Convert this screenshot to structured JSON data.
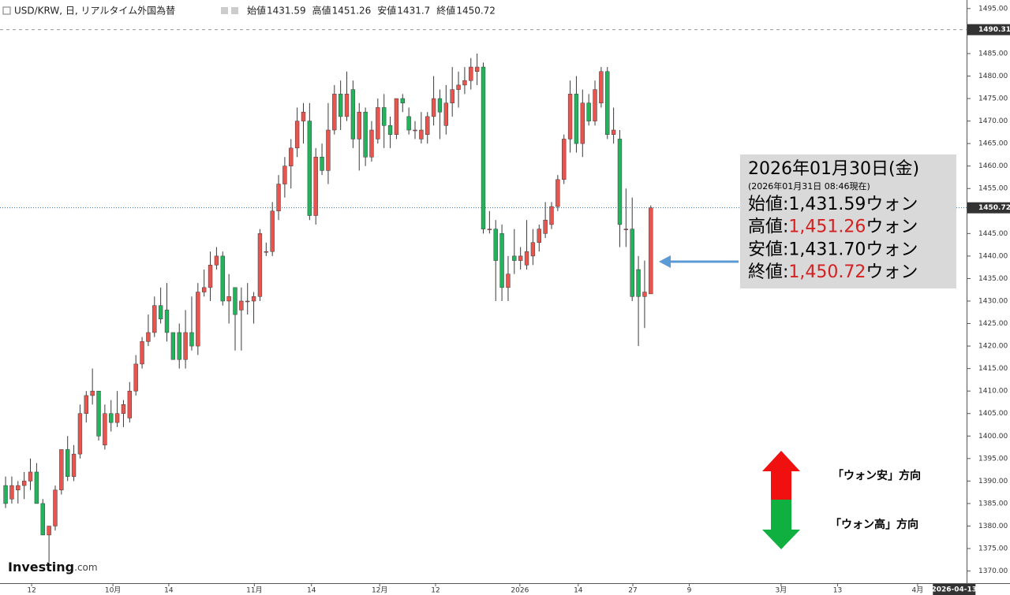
{
  "chart_data": {
    "type": "candlestick",
    "header": {
      "symbol": "USD/KRW, 日, リアルタイム外国為替",
      "ohlc": [
        {
          "label": "始値",
          "value": 1431.59
        },
        {
          "label": "高値",
          "value": 1451.26
        },
        {
          "label": "安値",
          "value": 1431.7
        },
        {
          "label": "終値",
          "value": 1450.72
        }
      ]
    },
    "up_color": "#e8544e",
    "down_color": "#22b35c",
    "wick_color": "#3a3a3a",
    "candles": [
      [
        1389,
        1391,
        1384,
        1385
      ],
      [
        1386,
        1391,
        1385,
        1389
      ],
      [
        1388,
        1390,
        1385,
        1389
      ],
      [
        1389,
        1392,
        1386,
        1390
      ],
      [
        1390,
        1395,
        1388,
        1392
      ],
      [
        1392,
        1394,
        1385,
        1385
      ],
      [
        1385,
        1386,
        1378,
        1378
      ],
      [
        1378,
        1380,
        1372,
        1380
      ],
      [
        1380,
        1389,
        1379,
        1388
      ],
      [
        1388,
        1397,
        1387,
        1397
      ],
      [
        1397,
        1400,
        1390,
        1391
      ],
      [
        1391,
        1398,
        1390,
        1396
      ],
      [
        1396,
        1407,
        1395,
        1405
      ],
      [
        1405,
        1410,
        1403,
        1409
      ],
      [
        1409,
        1415,
        1407,
        1410
      ],
      [
        1410,
        1410,
        1399,
        1400
      ],
      [
        1398,
        1407,
        1397,
        1405
      ],
      [
        1405,
        1408,
        1401,
        1403
      ],
      [
        1403,
        1410,
        1402,
        1405
      ],
      [
        1405,
        1408,
        1402,
        1407
      ],
      [
        1404,
        1412,
        1403,
        1410
      ],
      [
        1410,
        1418,
        1409,
        1416
      ],
      [
        1416,
        1422,
        1415,
        1421
      ],
      [
        1421,
        1427,
        1420,
        1423
      ],
      [
        1423,
        1431,
        1422,
        1429
      ],
      [
        1429,
        1433,
        1425,
        1426
      ],
      [
        1428,
        1434,
        1421,
        1423
      ],
      [
        1423,
        1423,
        1417,
        1417
      ],
      [
        1423,
        1425,
        1415,
        1417
      ],
      [
        1417,
        1428,
        1415,
        1423
      ],
      [
        1423,
        1431,
        1419,
        1420
      ],
      [
        1420,
        1434,
        1418,
        1432
      ],
      [
        1432,
        1437,
        1431,
        1433
      ],
      [
        1433,
        1441,
        1430,
        1438
      ],
      [
        1438,
        1442,
        1437,
        1440
      ],
      [
        1440,
        1441,
        1429,
        1430
      ],
      [
        1430,
        1436,
        1425,
        1431
      ],
      [
        1433,
        1433,
        1419,
        1427
      ],
      [
        1428,
        1433,
        1419,
        1430
      ],
      [
        1430,
        1434,
        1427,
        1430
      ],
      [
        1430,
        1432,
        1425,
        1431
      ],
      [
        1431,
        1446,
        1430,
        1445
      ],
      [
        1441,
        1443,
        1440,
        1441
      ],
      [
        1441,
        1452,
        1440,
        1450
      ],
      [
        1450,
        1458,
        1448,
        1456
      ],
      [
        1456,
        1462,
        1453,
        1460
      ],
      [
        1460,
        1466,
        1455,
        1464
      ],
      [
        1464,
        1473,
        1462,
        1470
      ],
      [
        1470,
        1474,
        1465,
        1472
      ],
      [
        1470,
        1474,
        1448,
        1449
      ],
      [
        1449,
        1464,
        1447,
        1462
      ],
      [
        1462,
        1465,
        1458,
        1459
      ],
      [
        1459,
        1474,
        1456,
        1468
      ],
      [
        1468,
        1478,
        1467,
        1476
      ],
      [
        1476,
        1479,
        1468,
        1471
      ],
      [
        1471,
        1481,
        1470,
        1476
      ],
      [
        1477,
        1479,
        1464,
        1466
      ],
      [
        1466,
        1474,
        1459,
        1472
      ],
      [
        1472,
        1473,
        1460,
        1462
      ],
      [
        1462,
        1470,
        1461,
        1468
      ],
      [
        1466,
        1475,
        1465,
        1473
      ],
      [
        1473,
        1476,
        1464,
        1469
      ],
      [
        1469,
        1471,
        1464,
        1467
      ],
      [
        1467,
        1475,
        1466,
        1475
      ],
      [
        1475,
        1476,
        1472,
        1474
      ],
      [
        1471,
        1473,
        1467,
        1468
      ],
      [
        1468,
        1470,
        1466,
        1468
      ],
      [
        1466,
        1472,
        1465,
        1468
      ],
      [
        1467,
        1472,
        1465,
        1471
      ],
      [
        1471,
        1480,
        1469,
        1475
      ],
      [
        1475,
        1477,
        1466,
        1472
      ],
      [
        1469,
        1478,
        1467,
        1474
      ],
      [
        1474,
        1482,
        1471,
        1477
      ],
      [
        1477,
        1481,
        1473,
        1478
      ],
      [
        1478,
        1482,
        1476,
        1479
      ],
      [
        1479,
        1484,
        1477,
        1482
      ],
      [
        1481,
        1485,
        1478,
        1482
      ],
      [
        1482,
        1483,
        1445,
        1446
      ],
      [
        1446,
        1450,
        1445,
        1446
      ],
      [
        1446,
        1448,
        1430,
        1439
      ],
      [
        1445,
        1447,
        1430,
        1433
      ],
      [
        1433,
        1440,
        1430,
        1436
      ],
      [
        1440,
        1446,
        1436,
        1439
      ],
      [
        1439,
        1442,
        1437,
        1440
      ],
      [
        1438,
        1448,
        1437,
        1441
      ],
      [
        1440,
        1446,
        1438,
        1443
      ],
      [
        1443,
        1447,
        1441,
        1446
      ],
      [
        1445,
        1452,
        1444,
        1448
      ],
      [
        1447,
        1452,
        1446,
        1451
      ],
      [
        1451,
        1458,
        1450,
        1457
      ],
      [
        1457,
        1467,
        1456,
        1466
      ],
      [
        1466,
        1479,
        1463,
        1476
      ],
      [
        1476,
        1480,
        1463,
        1465
      ],
      [
        1465,
        1477,
        1462,
        1474
      ],
      [
        1474,
        1476,
        1469,
        1470
      ],
      [
        1470,
        1479,
        1469,
        1477
      ],
      [
        1474,
        1482,
        1473,
        1481
      ],
      [
        1481,
        1482,
        1466,
        1467
      ],
      [
        1467,
        1473,
        1465,
        1468
      ],
      [
        1466,
        1468,
        1442,
        1447
      ],
      [
        1446,
        1455,
        1442,
        1446
      ],
      [
        1446,
        1453,
        1430,
        1431
      ],
      [
        1437,
        1440,
        1420,
        1431
      ],
      [
        1431,
        1439,
        1424,
        1432
      ],
      [
        1431.59,
        1451.26,
        1431.7,
        1450.72
      ]
    ],
    "xlim": [
      -0.9,
      154.9
    ],
    "xticks": [
      {
        "value": 4.2,
        "label": "12"
      },
      {
        "value": 17.3,
        "label": "10月"
      },
      {
        "value": 26.3,
        "label": "14"
      },
      {
        "value": 40.1,
        "label": "11月"
      },
      {
        "value": 49.3,
        "label": "14"
      },
      {
        "value": 60.3,
        "label": "12月"
      },
      {
        "value": 69.3,
        "label": "12"
      },
      {
        "value": 82.9,
        "label": "2026"
      },
      {
        "value": 92.3,
        "label": "14"
      },
      {
        "value": 101.1,
        "label": "27"
      },
      {
        "value": 110.2,
        "label": "9"
      },
      {
        "value": 125.0,
        "label": "3月"
      },
      {
        "value": 134.1,
        "label": "13"
      },
      {
        "value": 147.0,
        "label": "4月"
      }
    ],
    "x_marker": {
      "value": 152.9,
      "label": "2026-04-13"
    },
    "ylim": [
      1367.3,
      1496.9
    ],
    "yticks": [
      {
        "value": 1370,
        "label": "1370.00"
      },
      {
        "value": 1375,
        "label": "1375.00"
      },
      {
        "value": 1380,
        "label": "1380.00"
      },
      {
        "value": 1385,
        "label": "1385.00"
      },
      {
        "value": 1390,
        "label": "1390.00"
      },
      {
        "value": 1395,
        "label": "1395.00"
      },
      {
        "value": 1400,
        "label": "1400.00"
      },
      {
        "value": 1405,
        "label": "1405.00"
      },
      {
        "value": 1410,
        "label": "1410.00"
      },
      {
        "value": 1415,
        "label": "1415.00"
      },
      {
        "value": 1420,
        "label": "1420.00"
      },
      {
        "value": 1425,
        "label": "1425.00"
      },
      {
        "value": 1430,
        "label": "1430.00"
      },
      {
        "value": 1435,
        "label": "1435.00"
      },
      {
        "value": 1440,
        "label": "1440.00"
      },
      {
        "value": 1445,
        "label": "1445.00"
      },
      {
        "value": 1450,
        "label": "1450.00"
      },
      {
        "value": 1455,
        "label": "1455.00"
      },
      {
        "value": 1460,
        "label": "1460.00"
      },
      {
        "value": 1465,
        "label": "1465.00"
      },
      {
        "value": 1470,
        "label": "1470.00"
      },
      {
        "value": 1475,
        "label": "1475.00"
      },
      {
        "value": 1480,
        "label": "1480.00"
      },
      {
        "value": 1485,
        "label": "1485.00"
      },
      {
        "value": 1490,
        "label": "1490.00"
      },
      {
        "value": 1495,
        "label": "1495.00"
      }
    ],
    "price_lines": [
      {
        "value": 1490.31,
        "color": "#999999",
        "dash": "4,4"
      },
      {
        "value": 1450.72,
        "color": "#2a6fb0",
        "dash": "1,2"
      }
    ],
    "info_box": {
      "date": "2026年01月30日(金)",
      "asof": "(2026年01月31日 08:46現在)",
      "rows": [
        {
          "label": "始値:",
          "value": "1,431.59",
          "unit": "ウォン",
          "color": "#000000"
        },
        {
          "label": "高値:",
          "value": "1,451.26",
          "unit": "ウォン",
          "color": "#d42020"
        },
        {
          "label": "安値:",
          "value": "1,431.70",
          "unit": "ウォン",
          "color": "#000000"
        },
        {
          "label": "終値:",
          "value": "1,450.72",
          "unit": "ウォン",
          "color": "#d42020"
        }
      ]
    },
    "direction_labels": {
      "up": "「ウォン安」方向",
      "down": "「ウォン高」方向"
    },
    "logo": {
      "brand": "Investing",
      "suffix": ".com"
    }
  }
}
